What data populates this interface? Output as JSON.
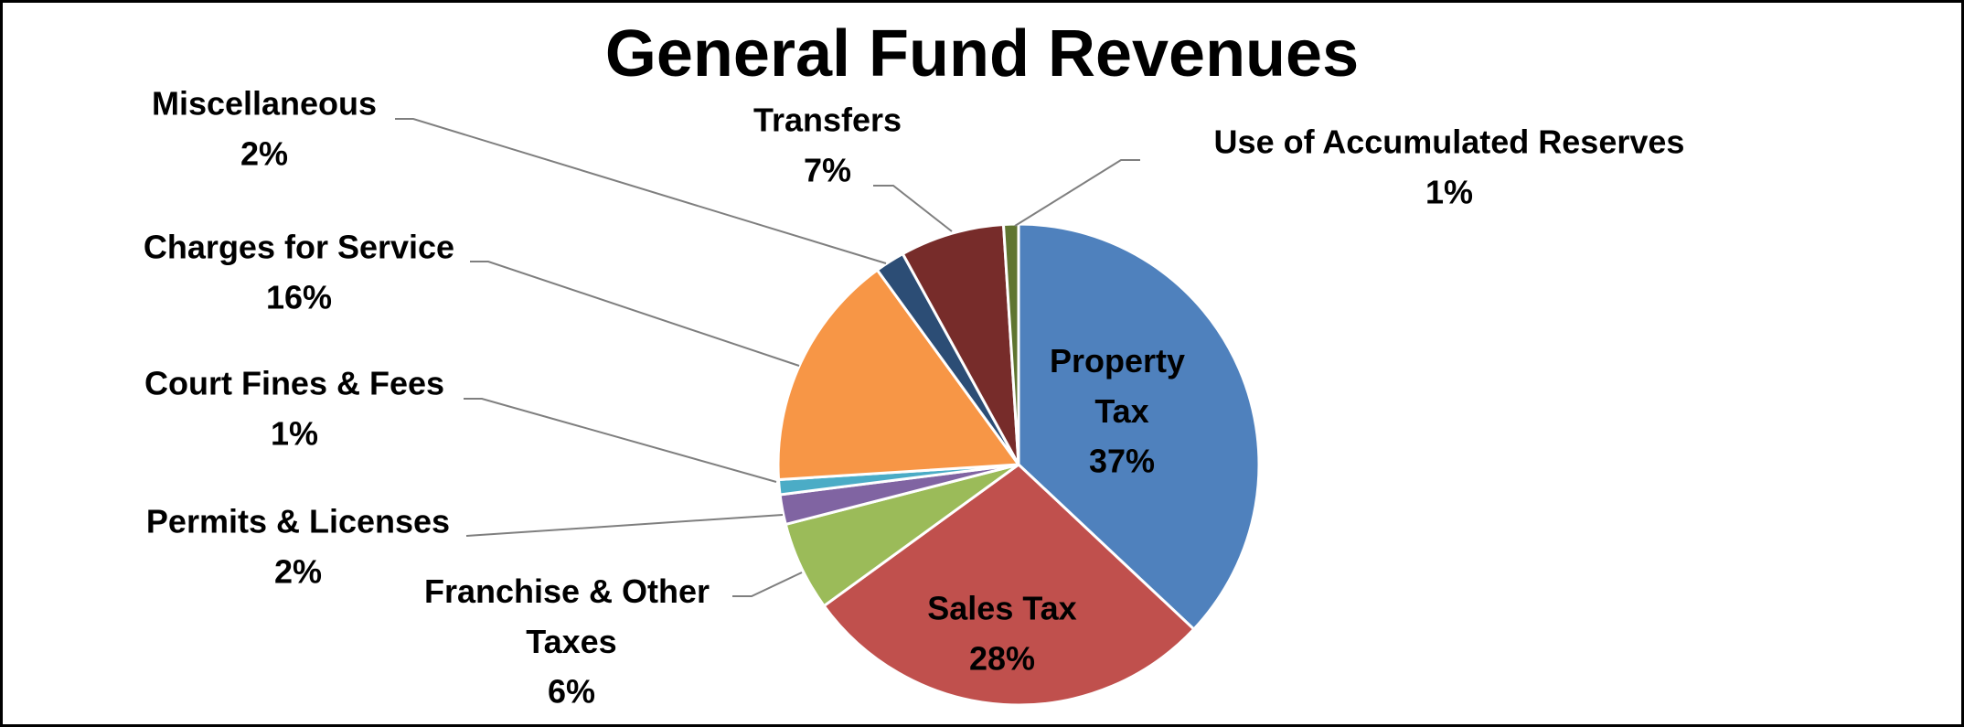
{
  "chart_data": {
    "type": "pie",
    "title": "General Fund Revenues",
    "categories": [
      "Property Tax",
      "Sales Tax",
      "Franchise & Other Taxes",
      "Permits & Licenses",
      "Court Fines & Fees",
      "Charges for Service",
      "Miscellaneous",
      "Transfers",
      "Use of Accumulated Reserves"
    ],
    "values": [
      37,
      28,
      6,
      2,
      1,
      16,
      2,
      7,
      1
    ],
    "value_labels": [
      "37%",
      "28%",
      "6%",
      "2%",
      "1%",
      "16%",
      "2%",
      "7%",
      "1%"
    ],
    "colors": [
      "#4f81bd",
      "#c0504d",
      "#9bbb59",
      "#8064a2",
      "#4bacc6",
      "#f79646",
      "#2c4d75",
      "#772c2a",
      "#5f7530"
    ]
  }
}
